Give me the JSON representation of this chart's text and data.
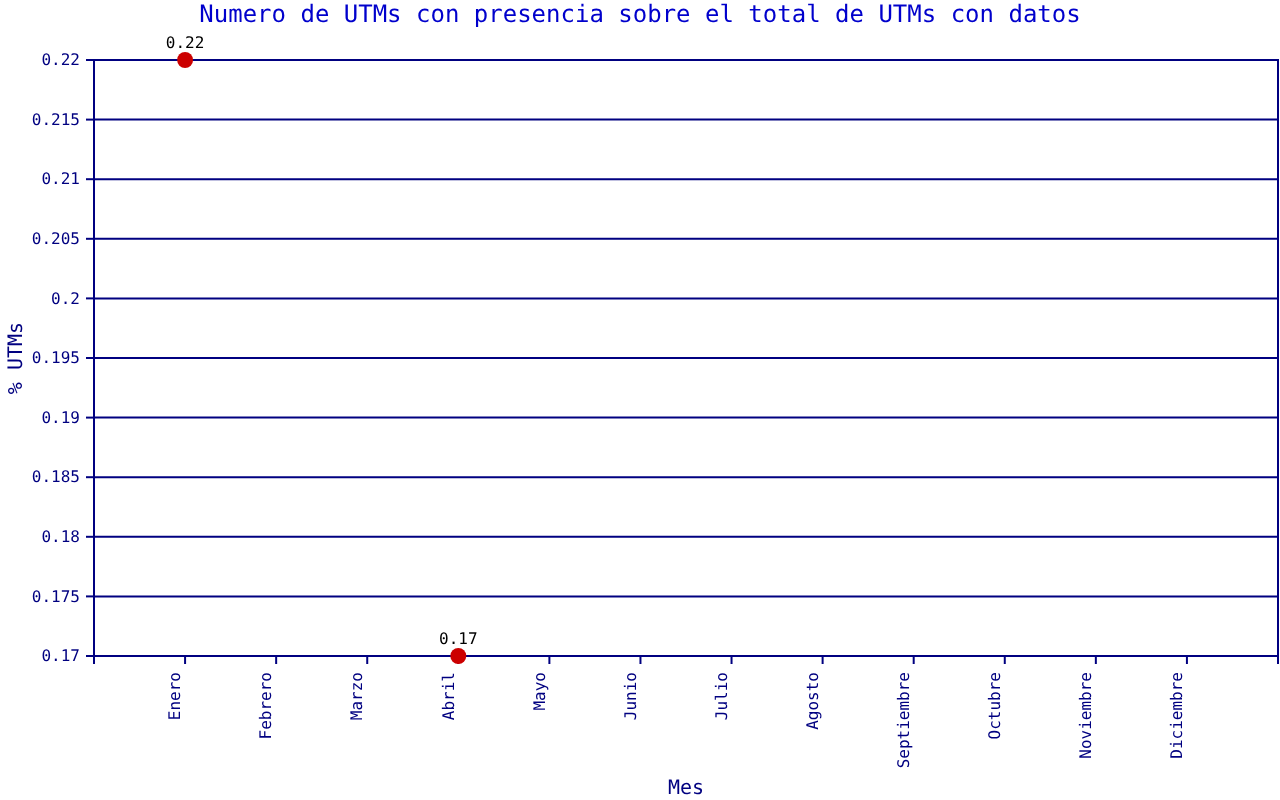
{
  "chart_data": {
    "type": "scatter",
    "title": "Numero de UTMs con presencia sobre el total de UTMs con datos",
    "xlabel": "Mes",
    "ylabel": "% UTMs",
    "categories": [
      "Enero",
      "Febrero",
      "Marzo",
      "Abril",
      "Mayo",
      "Junio",
      "Julio",
      "Agosto",
      "Septiembre",
      "Octubre",
      "Noviembre",
      "Diciembre"
    ],
    "series": [
      {
        "color": "#cc0000",
        "values": [
          0.22,
          null,
          null,
          0.17,
          null,
          null,
          null,
          null,
          null,
          null,
          null,
          null
        ]
      }
    ],
    "ylim": [
      0.17,
      0.22
    ],
    "yticks": [
      0.17,
      0.175,
      0.18,
      0.185,
      0.19,
      0.195,
      0.2,
      0.205,
      0.21,
      0.215,
      0.22
    ],
    "grid": "y",
    "marker": "circle",
    "data_labels": true
  }
}
